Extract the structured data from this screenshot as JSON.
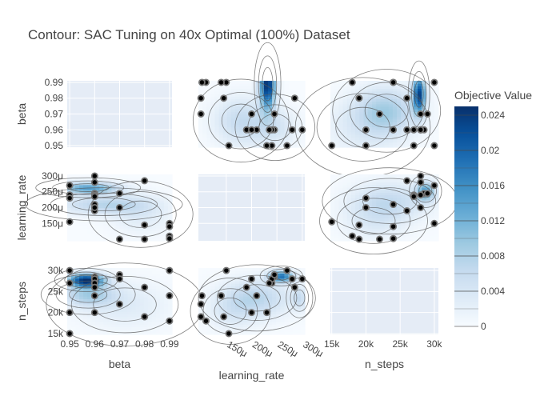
{
  "chart_data": {
    "type": "contour",
    "title": "Contour: SAC Tuning on 40x Optimal (100%) Dataset",
    "params": [
      "beta",
      "learning_rate",
      "n_steps"
    ],
    "axis_labels": {
      "beta": "beta",
      "learning_rate": "learning_rate",
      "n_steps": "n_steps"
    },
    "ranges": {
      "beta": [
        0.949,
        0.991
      ],
      "learning_rate": [
        9.5e-05,
        0.000305
      ],
      "n_steps": [
        14800,
        30600
      ]
    },
    "ticks": {
      "beta": {
        "values": [
          0.95,
          0.96,
          0.97,
          0.98,
          0.99
        ],
        "labels": [
          "0.95",
          "0.96",
          "0.97",
          "0.98",
          "0.99"
        ]
      },
      "learning_rate": {
        "values": [
          0.00015,
          0.0002,
          0.00025,
          0.0003
        ],
        "labels": [
          "150μ",
          "200μ",
          "250μ",
          "300μ"
        ]
      },
      "n_steps": {
        "values": [
          15000,
          20000,
          25000,
          30000
        ],
        "labels": [
          "15k",
          "20k",
          "25k",
          "30k"
        ]
      }
    },
    "colorbar": {
      "title": "Objective Value",
      "range": [
        0,
        0.025
      ],
      "ticks": [
        0,
        0.004,
        0.008,
        0.012,
        0.016,
        0.02,
        0.024
      ],
      "tick_labels": [
        "0",
        "0.004",
        "0.008",
        "0.012",
        "0.016",
        "0.02",
        "0.024"
      ],
      "colors": [
        "#f7fbff",
        "#deebf7",
        "#c6dbef",
        "#9ecae1",
        "#6baed6",
        "#4292c6",
        "#2171b5",
        "#08519c",
        "#08306b"
      ]
    },
    "trials": [
      {
        "beta": 0.95,
        "learning_rate": 0.00027,
        "n_steps": 30000
      },
      {
        "beta": 0.95,
        "learning_rate": 0.00024,
        "n_steps": 27000
      },
      {
        "beta": 0.95,
        "learning_rate": 0.00023,
        "n_steps": 20000
      },
      {
        "beta": 0.95,
        "learning_rate": 0.000155,
        "n_steps": 15000
      },
      {
        "beta": 0.96,
        "learning_rate": 0.0003,
        "n_steps": 28000
      },
      {
        "beta": 0.96,
        "learning_rate": 0.00028,
        "n_steps": 28000
      },
      {
        "beta": 0.96,
        "learning_rate": 0.000245,
        "n_steps": 28500
      },
      {
        "beta": 0.96,
        "learning_rate": 0.00024,
        "n_steps": 28000
      },
      {
        "beta": 0.96,
        "learning_rate": 0.000235,
        "n_steps": 27000
      },
      {
        "beta": 0.96,
        "learning_rate": 0.00021,
        "n_steps": 24000
      },
      {
        "beta": 0.96,
        "learning_rate": 0.00019,
        "n_steps": 26000
      },
      {
        "beta": 0.96,
        "learning_rate": 0.0002,
        "n_steps": 20000
      },
      {
        "beta": 0.97,
        "learning_rate": 0.000245,
        "n_steps": 29000
      },
      {
        "beta": 0.97,
        "learning_rate": 0.0002,
        "n_steps": 28000
      },
      {
        "beta": 0.97,
        "learning_rate": 0.0001,
        "n_steps": 22000
      },
      {
        "beta": 0.98,
        "learning_rate": 0.000285,
        "n_steps": 26000
      },
      {
        "beta": 0.98,
        "learning_rate": 0.000145,
        "n_steps": 19000
      },
      {
        "beta": 0.98,
        "learning_rate": 0.0001,
        "n_steps": 19000
      },
      {
        "beta": 0.99,
        "learning_rate": 0.00015,
        "n_steps": 30000
      },
      {
        "beta": 0.99,
        "learning_rate": 0.00014,
        "n_steps": 24000
      },
      {
        "beta": 0.99,
        "learning_rate": 0.00011,
        "n_steps": 18000
      },
      {
        "beta": 0.99,
        "learning_rate": 0.000102,
        "n_steps": 24000
      }
    ]
  }
}
